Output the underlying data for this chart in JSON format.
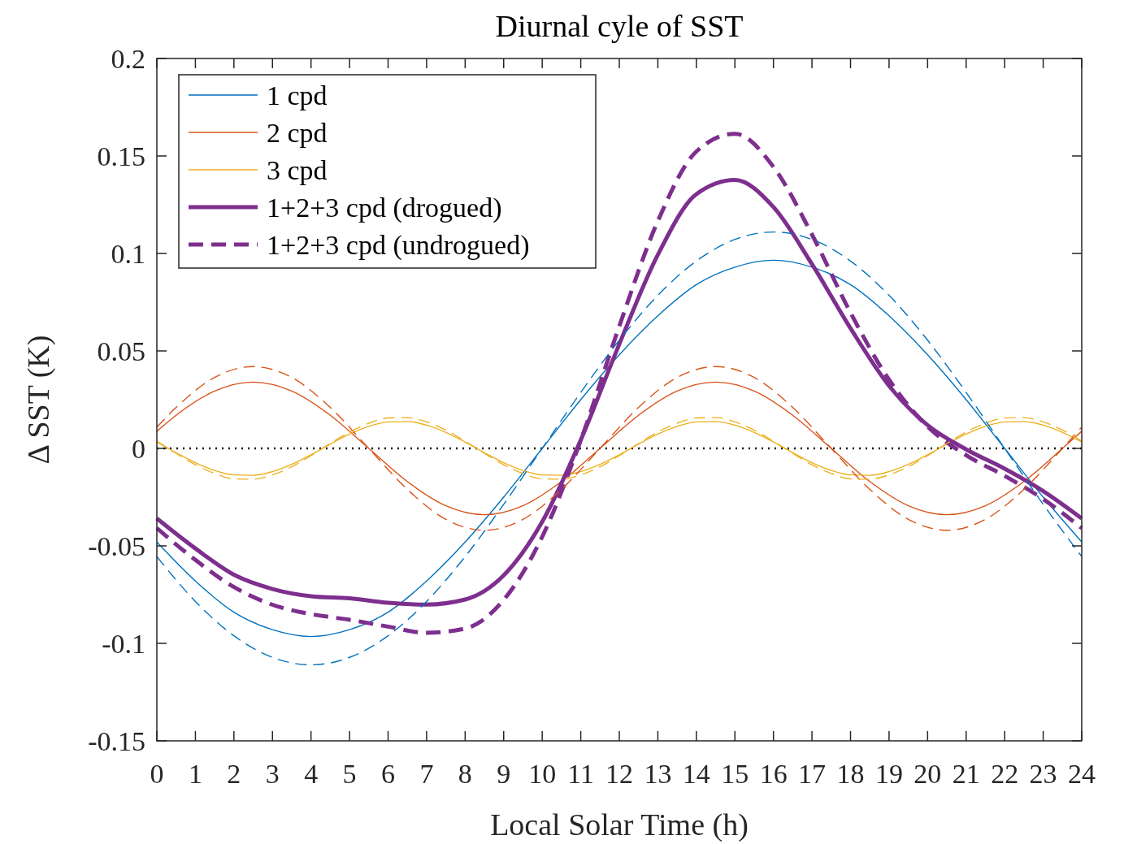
{
  "chart_data": {
    "type": "line",
    "title": "Diurnal cyle of SST",
    "xlabel": "Local Solar Time (h)",
    "ylabel": "Δ SST (K)",
    "xlim": [
      0,
      24
    ],
    "xticks": [
      0,
      1,
      2,
      3,
      4,
      5,
      6,
      7,
      8,
      9,
      10,
      11,
      12,
      13,
      14,
      15,
      16,
      17,
      18,
      19,
      20,
      21,
      22,
      23,
      24
    ],
    "ylim": [
      -0.15,
      0.2
    ],
    "yticks": [
      -0.15,
      -0.1,
      -0.05,
      0,
      0.05,
      0.1,
      0.15,
      0.2
    ],
    "grid": false,
    "legend": "top left",
    "marker": "none",
    "ref_lines": [
      {
        "axis": "y",
        "value": 0,
        "color": "#000000",
        "line_style": "dotted"
      }
    ],
    "series": [
      {
        "name": "1 cpd",
        "color": "#0072bd",
        "line_style": "solid",
        "x": [
          0,
          1,
          2,
          3,
          4,
          5,
          6,
          7,
          8,
          9,
          10,
          11,
          12,
          13,
          14,
          15,
          16,
          17,
          18,
          19,
          20,
          21,
          22,
          23,
          24
        ],
        "values": [
          -0.048,
          -0.068,
          -0.084,
          -0.093,
          -0.0965,
          -0.093,
          -0.084,
          -0.068,
          -0.048,
          -0.025,
          0,
          0.025,
          0.048,
          0.068,
          0.084,
          0.093,
          0.0965,
          0.093,
          0.084,
          0.068,
          0.048,
          0.025,
          0,
          -0.025,
          -0.048
        ]
      },
      {
        "name": "2 cpd",
        "color": "#d95319",
        "line_style": "solid",
        "x": [
          0,
          0.5,
          1.5,
          2.5,
          3.5,
          4.5,
          5.5,
          6.5,
          7.5,
          8.5,
          9.5,
          10.5,
          11.5,
          12.5,
          13.5,
          14.5,
          15.5,
          16.5,
          17.5,
          18.5,
          19.5,
          20.5,
          21.5,
          22.5,
          23.5,
          24
        ],
        "values": [
          0.0088,
          0.017,
          0.0294,
          0.034,
          0.0294,
          0.017,
          0,
          -0.017,
          -0.0294,
          -0.034,
          -0.0294,
          -0.017,
          0,
          0.017,
          0.0294,
          0.034,
          0.0294,
          0.017,
          0,
          -0.017,
          -0.0294,
          -0.034,
          -0.0294,
          -0.017,
          0,
          0.0088
        ]
      },
      {
        "name": "3 cpd",
        "color": "#edb120",
        "line_style": "solid",
        "x": [
          0,
          0.5,
          1,
          1.5,
          2,
          2.5,
          3,
          3.5,
          4,
          4.5,
          5,
          5.5,
          6,
          6.5,
          7,
          7.5,
          8,
          8.5,
          9,
          9.5,
          10,
          10.5,
          11,
          11.5,
          12,
          12.5,
          13,
          13.5,
          14,
          14.5,
          15,
          15.5,
          16,
          16.5,
          17,
          17.5,
          18,
          18.5,
          19,
          19.5,
          20,
          20.5,
          21,
          21.5,
          22,
          22.5,
          23,
          23.5,
          24
        ],
        "values": [
          0.0033,
          -0.0022,
          -0.0073,
          -0.0113,
          -0.0136,
          -0.0138,
          -0.0119,
          -0.0082,
          -0.0033,
          0.0022,
          0.0073,
          0.0113,
          0.0136,
          0.0138,
          0.0119,
          0.0082,
          0.0033,
          -0.0022,
          -0.0073,
          -0.0113,
          -0.0136,
          -0.0138,
          -0.0119,
          -0.0082,
          -0.0033,
          0.0022,
          0.0073,
          0.0113,
          0.0136,
          0.0138,
          0.0119,
          0.0082,
          0.0033,
          -0.0022,
          -0.0073,
          -0.0113,
          -0.0136,
          -0.0138,
          -0.0119,
          -0.0082,
          -0.0033,
          0.0022,
          0.0073,
          0.0113,
          0.0136,
          0.0138,
          0.0119,
          0.0082,
          0.0033
        ]
      },
      {
        "name": "1+2+3 cpd (drogued)",
        "color": "#7e2f8e",
        "line_style": "solid",
        "x": [
          0,
          1,
          2,
          3,
          4,
          5,
          6,
          7,
          8,
          9,
          10,
          11,
          12,
          13,
          14,
          15,
          16,
          17,
          18,
          19,
          20,
          21,
          22,
          23,
          24
        ],
        "values": [
          -0.0359,
          -0.0513,
          -0.0648,
          -0.0721,
          -0.0758,
          -0.0769,
          -0.0792,
          -0.0801,
          -0.0775,
          -0.0651,
          -0.0376,
          0.0043,
          0.0535,
          0.0993,
          0.1304,
          0.1377,
          0.1238,
          0.0945,
          0.0616,
          0.0321,
          0.0119,
          -0.0005,
          -0.0104,
          -0.0219,
          -0.0359
        ]
      },
      {
        "name": "1+2+3 cpd (undrogued)",
        "color": "#7e2f8e",
        "line_style": "dashed",
        "x": [
          0,
          1,
          2,
          3,
          4,
          5,
          6,
          7,
          8,
          9,
          10,
          11,
          12,
          13,
          14,
          15,
          16,
          17,
          18,
          19,
          20,
          21,
          22,
          23,
          24
        ],
        "values": [
          -0.0409,
          -0.0572,
          -0.0711,
          -0.0802,
          -0.085,
          -0.0879,
          -0.0914,
          -0.0946,
          -0.0924,
          -0.0777,
          -0.0453,
          0.0042,
          0.0627,
          0.1166,
          0.1523,
          0.1614,
          0.1444,
          0.1097,
          0.0696,
          0.0352,
          0.0112,
          -0.0035,
          -0.0141,
          -0.026,
          -0.0409
        ]
      },
      {
        "color": "#0072bd",
        "line_style": "dashed",
        "x": [
          0,
          1,
          2,
          3,
          4,
          5,
          6,
          7,
          8,
          9,
          10,
          11,
          12,
          13,
          14,
          15,
          16,
          17,
          18,
          19,
          20,
          21,
          22,
          23,
          24
        ],
        "values": [
          -0.0555,
          -0.0785,
          -0.0961,
          -0.1072,
          -0.111,
          -0.1072,
          -0.0961,
          -0.0785,
          -0.0555,
          -0.0287,
          0,
          0.0287,
          0.0555,
          0.0785,
          0.0961,
          0.1072,
          0.111,
          0.1072,
          0.0961,
          0.0785,
          0.0555,
          0.0287,
          0,
          -0.0287,
          -0.0555
        ]
      },
      {
        "color": "#d95319",
        "line_style": "dashed",
        "x": [
          0,
          0.5,
          1.5,
          2.5,
          3.5,
          4.5,
          5.5,
          6.5,
          7.5,
          8.5,
          9.5,
          10.5,
          11.5,
          12.5,
          13.5,
          14.5,
          15.5,
          16.5,
          17.5,
          18.5,
          19.5,
          20.5,
          21.5,
          22.5,
          23.5,
          24
        ],
        "values": [
          0.0109,
          0.021,
          0.0364,
          0.042,
          0.0364,
          0.021,
          0,
          -0.021,
          -0.0364,
          -0.042,
          -0.0364,
          -0.021,
          0,
          0.021,
          0.0364,
          0.042,
          0.0364,
          0.021,
          0,
          -0.021,
          -0.0364,
          -0.042,
          -0.0364,
          -0.021,
          0,
          0.0109
        ]
      },
      {
        "color": "#edb120",
        "line_style": "dashed",
        "x": [
          0,
          0.5,
          1,
          1.5,
          2,
          2.5,
          3,
          3.5,
          4,
          4.5,
          5,
          5.5,
          6,
          6.5,
          7,
          7.5,
          8,
          8.5,
          9,
          9.5,
          10,
          10.5,
          11,
          11.5,
          12,
          12.5,
          13,
          13.5,
          14,
          14.5,
          15,
          15.5,
          16,
          16.5,
          17,
          17.5,
          18,
          18.5,
          19,
          19.5,
          20,
          20.5,
          21,
          21.5,
          22,
          22.5,
          23,
          23.5,
          24
        ],
        "values": [
          0.0037,
          -0.0025,
          -0.0084,
          -0.0129,
          -0.0156,
          -0.0158,
          -0.0136,
          -0.0094,
          -0.0037,
          0.0025,
          0.0084,
          0.0129,
          0.0156,
          0.0158,
          0.0136,
          0.0094,
          0.0037,
          -0.0025,
          -0.0084,
          -0.0129,
          -0.0156,
          -0.0158,
          -0.0136,
          -0.0094,
          -0.0037,
          0.0025,
          0.0084,
          0.0129,
          0.0156,
          0.0158,
          0.0136,
          0.0094,
          0.0037,
          -0.0025,
          -0.0084,
          -0.0129,
          -0.0156,
          -0.0158,
          -0.0136,
          -0.0094,
          -0.0037,
          0.0025,
          0.0084,
          0.0129,
          0.0156,
          0.0158,
          0.0136,
          0.0094,
          0.0037
        ]
      }
    ]
  }
}
